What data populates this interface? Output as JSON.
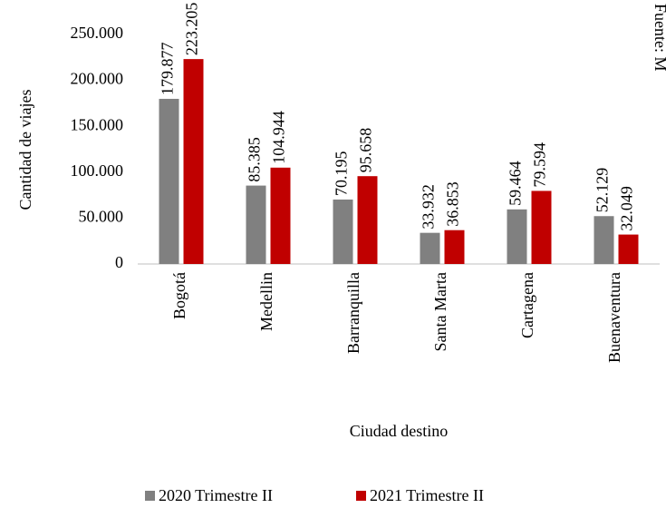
{
  "chart_data": {
    "type": "bar",
    "y_label": "Cantidad  de viajes",
    "x_label": "Ciudad  destino",
    "source": "Fuente: M",
    "categories": [
      "Bogotá",
      "Medellin",
      "Barranquilla",
      "Santa Marta",
      "Cartagena",
      "Buenaventura"
    ],
    "series": [
      {
        "name": "2020 Trimestre II",
        "color": "#808080",
        "values": [
          179877,
          85385,
          70195,
          33932,
          59464,
          52129
        ],
        "value_labels": [
          "179.877",
          "85.385",
          "70.195",
          "33.932",
          "59.464",
          "52.129"
        ]
      },
      {
        "name": "2021 Trimestre II",
        "color": "#c00000",
        "values": [
          223205,
          104944,
          95658,
          36853,
          79594,
          32049
        ],
        "value_labels": [
          "223.205",
          "104.944",
          "95.658",
          "36.853",
          "79.594",
          "32.049"
        ]
      }
    ],
    "ylim": [
      0,
      250000
    ],
    "yticks": [
      0,
      {
        "value": 50000,
        "label": "50.000"
      },
      {
        "value": 100000,
        "label": "100.000"
      },
      {
        "value": 150000,
        "label": "150.000"
      },
      {
        "value": 200000,
        "label": "200.000"
      },
      {
        "value": 250000,
        "label": "250.000"
      }
    ],
    "legend": "bottom"
  }
}
